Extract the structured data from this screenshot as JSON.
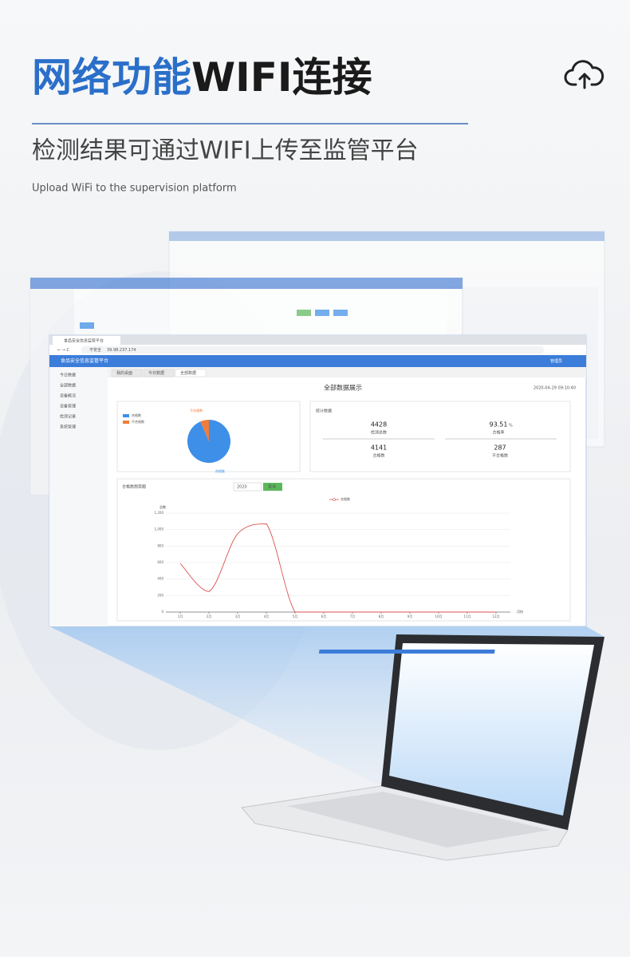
{
  "header": {
    "title_highlight": "网络功能",
    "title_rest": "WIFI连接",
    "subtitle": "检测结果可通过WIFI上传至监管平台",
    "subtitle_en": "Upload WiFi to the supervision platform"
  },
  "browser": {
    "tab": "食品安全信息监管平台",
    "security": "不安全",
    "address": "39.98.237.174"
  },
  "app": {
    "name": "食品安全信息监管平台",
    "user": "管理员",
    "menu": [
      "今日数据",
      "全部数据",
      "设备概况",
      "设备管理",
      "检测记录",
      "系统管理"
    ],
    "tabs": [
      "我的桌面",
      "今日数据",
      "全部数据"
    ],
    "page_title": "全部数据展示",
    "timestamp": "2020-04-29 09:10:40"
  },
  "stats": {
    "title": "统计数据",
    "items": [
      {
        "value": "4428",
        "label": "检测总数"
      },
      {
        "value": "93.51",
        "unit": "%",
        "label": "合格率"
      },
      {
        "value": "4141",
        "label": "合格数"
      },
      {
        "value": "287",
        "label": "不合格数"
      }
    ]
  },
  "pie": {
    "type": "pie",
    "labels": [
      "合格数",
      "不合格数"
    ],
    "values": [
      4141,
      287
    ],
    "colors": [
      "#3d8fe8",
      "#f07c3a"
    ]
  },
  "line_chart": {
    "type": "line",
    "title": "合格数趋势图",
    "year": "2020",
    "button": "查询",
    "series_name": "合格数",
    "y_label": "总数",
    "x_label": "月份",
    "categories": [
      "1月",
      "2月",
      "3月",
      "4月",
      "5月",
      "6月",
      "7月",
      "8月",
      "9月",
      "10月",
      "11月",
      "12月"
    ],
    "values": [
      590,
      250,
      950,
      1070,
      0,
      0,
      0,
      0,
      0,
      0,
      0,
      0
    ],
    "ylim": [
      0,
      1200
    ],
    "yticks": [
      0,
      200,
      400,
      600,
      800,
      {
        "value": 1000,
        "label": "1,000"
      },
      {
        "value": 1200,
        "label": "1,200"
      }
    ],
    "color": "#d9534f",
    "grid": true
  }
}
